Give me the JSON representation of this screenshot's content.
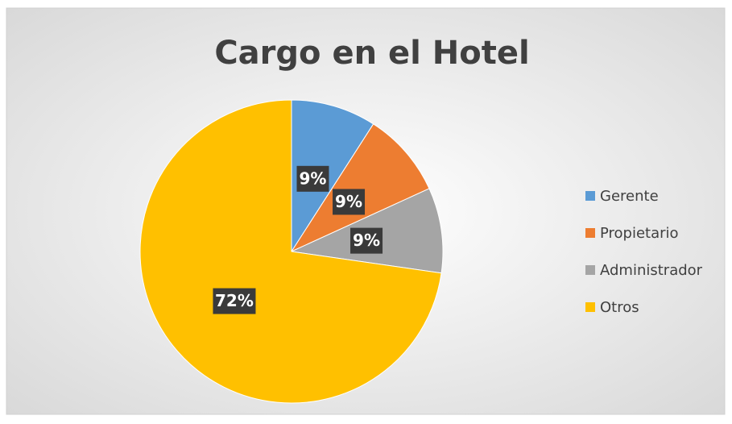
{
  "chart_data": {
    "type": "pie",
    "title": "Cargo en el Hotel",
    "categories": [
      "Gerente",
      "Propietario",
      "Administrador",
      "Otros"
    ],
    "values": [
      9,
      9,
      9,
      72
    ],
    "value_labels": [
      "9%",
      "9%",
      "9%",
      "72%"
    ],
    "colors": [
      "#5b9bd5",
      "#ed7d31",
      "#a5a5a5",
      "#ffc000"
    ],
    "legend": "right"
  }
}
